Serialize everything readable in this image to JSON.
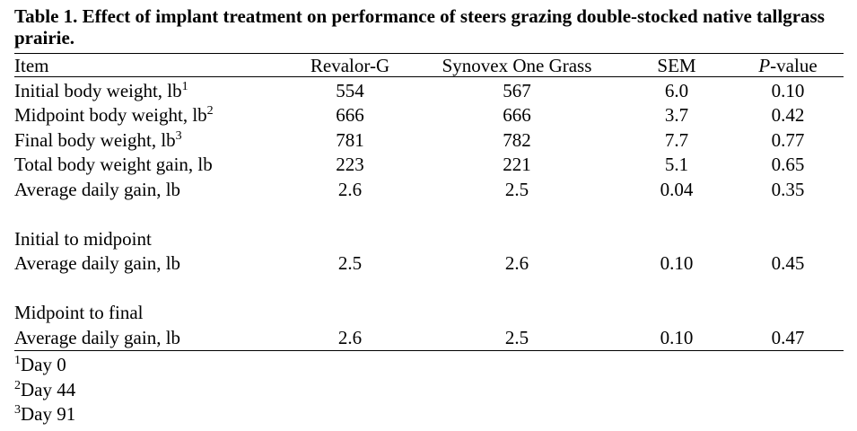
{
  "caption": "Table 1. Effect of implant treatment on performance of steers grazing double-stocked native tallgrass prairie.",
  "columns": {
    "item": "Item",
    "revalor": "Revalor-G",
    "synovex": "Synovex One Grass",
    "sem": "SEM",
    "p_italic": "P",
    "p_rest": "-value"
  },
  "rows": [
    {
      "label": "Initial body weight, lb",
      "sup": "1",
      "revalor": "554",
      "synovex": "567",
      "sem": "6.0",
      "p": "0.10"
    },
    {
      "label": "Midpoint body weight, lb",
      "sup": "2",
      "revalor": "666",
      "synovex": "666",
      "sem": "3.7",
      "p": "0.42"
    },
    {
      "label": "Final body weight, lb",
      "sup": "3",
      "revalor": "781",
      "synovex": "782",
      "sem": "7.7",
      "p": "0.77"
    },
    {
      "label": "Total body weight gain, lb",
      "revalor": "223",
      "synovex": "221",
      "sem": "5.1",
      "p": "0.65"
    },
    {
      "label": "Average daily gain, lb",
      "revalor": "2.6",
      "synovex": "2.5",
      "sem": "0.04",
      "p": "0.35"
    }
  ],
  "section1": {
    "heading": "Initial to midpoint",
    "row": {
      "label": "Average daily gain, lb",
      "revalor": "2.5",
      "synovex": "2.6",
      "sem": "0.10",
      "p": "0.45"
    }
  },
  "section2": {
    "heading": "Midpoint to final",
    "row": {
      "label": "Average daily gain, lb",
      "revalor": "2.6",
      "synovex": "2.5",
      "sem": "0.10",
      "p": "0.47"
    }
  },
  "footnotes": [
    {
      "mark": "1",
      "text": "Day 0"
    },
    {
      "mark": "2",
      "text": "Day 44"
    },
    {
      "mark": "3",
      "text": "Day 91"
    }
  ]
}
